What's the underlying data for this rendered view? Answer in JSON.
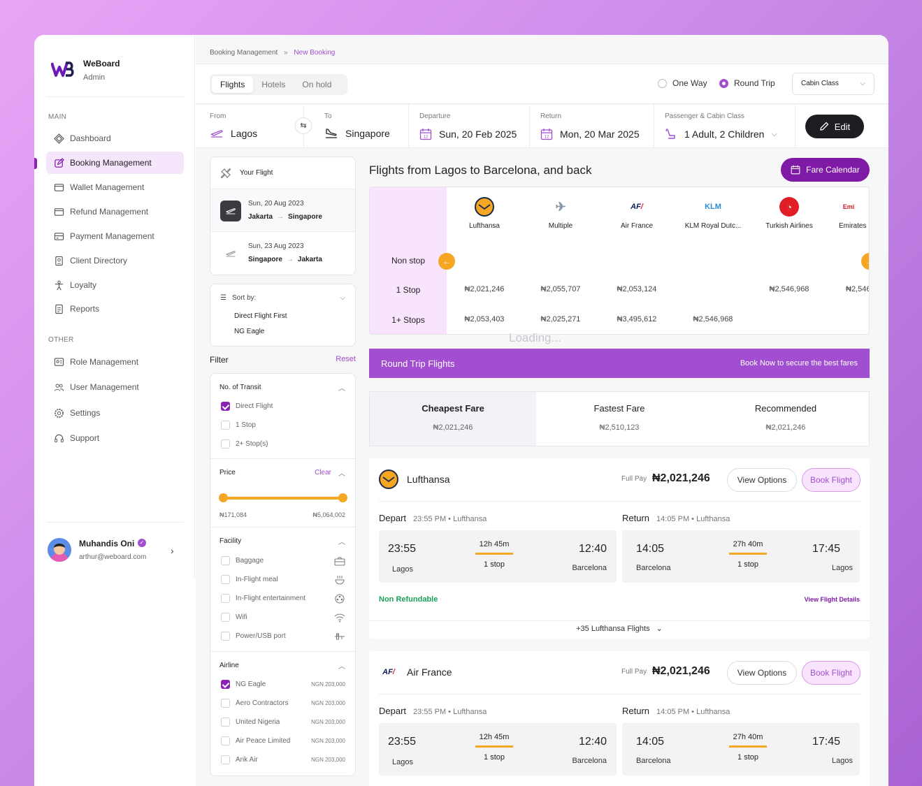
{
  "app": {
    "brand": "WeBoard",
    "role": "Admin"
  },
  "sidebar": {
    "main_label": "MAIN",
    "other_label": "OTHER",
    "items": [
      {
        "label": "Dashboard",
        "icon": "dashboard-icon"
      },
      {
        "label": "Booking Management",
        "icon": "edit-icon",
        "active": true
      },
      {
        "label": "Wallet Management",
        "icon": "wallet-icon"
      },
      {
        "label": "Refund Management",
        "icon": "refund-icon"
      },
      {
        "label": "Payment Management",
        "icon": "card-icon"
      },
      {
        "label": "Client Directory",
        "icon": "directory-icon"
      },
      {
        "label": "Loyalty",
        "icon": "loyalty-icon"
      },
      {
        "label": "Reports",
        "icon": "reports-icon"
      }
    ],
    "other_items": [
      {
        "label": "Role Management",
        "icon": "role-icon"
      },
      {
        "label": "User Management",
        "icon": "users-icon"
      },
      {
        "label": "Settings",
        "icon": "gear-icon"
      },
      {
        "label": "Support",
        "icon": "headset-icon"
      }
    ],
    "user": {
      "name": "Muhandis Oni",
      "email": "arthur@weboard.com"
    }
  },
  "breadcrumb": {
    "parent": "Booking Management",
    "sep": "»",
    "current": "New Booking"
  },
  "tabs": [
    "Flights",
    "Hotels",
    "On hold"
  ],
  "trip_type": {
    "one_way": "One Way",
    "round_trip": "Round Trip",
    "selected": "round_trip"
  },
  "cabin": {
    "label": "Cabin Class"
  },
  "search": {
    "from_label": "From",
    "from": "Lagos",
    "to_label": "To",
    "to": "Singapore",
    "departure_label": "Departure",
    "departure": "Sun, 20  Feb 2025",
    "return_label": "Return",
    "return": "Mon, 20  Mar 2025",
    "pax_label": "Passenger & Cabin Class",
    "pax": "1 Adult, 2 Children",
    "edit": "Edit"
  },
  "your_flight": {
    "title": "Your Flight",
    "legs": [
      {
        "date": "Sun, 20 Aug 2023",
        "from": "Jakarta",
        "to": "Singapore"
      },
      {
        "date": "Sun, 23 Aug 2023",
        "from": "Singapore",
        "to": "Jakarta"
      }
    ]
  },
  "sort": {
    "label": "Sort by:",
    "options": [
      "Direct Flight First",
      "NG Eagle"
    ]
  },
  "filter": {
    "title": "Filter",
    "reset": "Reset",
    "transit": {
      "title": "No. of Transit",
      "options": [
        {
          "label": "Direct Flight",
          "checked": true
        },
        {
          "label": "1 Stop",
          "checked": false
        },
        {
          "label": "2+ Stop(s)",
          "checked": false
        }
      ]
    },
    "price": {
      "title": "Price",
      "clear": "Clear",
      "min": "₦171,084",
      "max": "₦5,064,002",
      "range_fraction": [
        0,
        1
      ]
    },
    "facility": {
      "title": "Facility",
      "options": [
        {
          "label": "Baggage",
          "icon": "baggage-icon"
        },
        {
          "label": "In-Flight meal",
          "icon": "meal-icon"
        },
        {
          "label": "In-Flight entertainment",
          "icon": "entertainment-icon"
        },
        {
          "label": "Wifi",
          "icon": "wifi-icon"
        },
        {
          "label": "Power/USB port",
          "icon": "usb-icon"
        }
      ]
    },
    "airline": {
      "title": "Airline",
      "options": [
        {
          "label": "NG Eagle",
          "price": "NGN 203,000",
          "checked": true
        },
        {
          "label": "Aero Contractors",
          "price": "NGN 203,000",
          "checked": false
        },
        {
          "label": "United Nigeria",
          "price": "NGN 203,000",
          "checked": false
        },
        {
          "label": "Air Peace Limited",
          "price": "NGN 203,000",
          "checked": false
        },
        {
          "label": "Arik Air",
          "price": "NGN 203,000",
          "checked": false
        }
      ]
    }
  },
  "results": {
    "title": "Flights from Lagos to Barcelona, and back",
    "fare_calendar": "Fare Calendar",
    "loading": "Loading...",
    "matrix": {
      "rows": [
        "Non stop",
        "1 Stop",
        "1+ Stops"
      ],
      "airlines": [
        {
          "name": "Lufthansa",
          "prices": [
            "",
            "₦2,021,246",
            "₦2,053,403"
          ]
        },
        {
          "name": "Multiple",
          "prices": [
            "",
            "₦2,055,707",
            "₦2,025,271"
          ]
        },
        {
          "name": "Air France",
          "prices": [
            "",
            "₦2,053,124",
            "₦3,495,612"
          ]
        },
        {
          "name": "KLM Royal Dutc...",
          "prices": [
            "",
            "",
            "₦2,546,968"
          ]
        },
        {
          "name": "Turkish Airlines",
          "prices": [
            "",
            "₦2,546,968",
            ""
          ]
        },
        {
          "name": "Emirates",
          "prices": [
            "",
            "₦2,546",
            ""
          ]
        }
      ]
    },
    "banner": {
      "title": "Round Trip Flights",
      "subtitle": "Book Now to secure the best fares"
    },
    "fare_tabs": [
      {
        "label": "Cheapest Fare",
        "price": "₦2,021,246"
      },
      {
        "label": "Fastest Fare",
        "price": "₦2,510,123"
      },
      {
        "label": "Recommended",
        "price": "₦2,021,246"
      }
    ],
    "flights": [
      {
        "airline": "Lufthansa",
        "pay_label": "Full Pay",
        "price": "₦2,021,246",
        "view": "View Options",
        "book": "Book Flight",
        "depart_label": "Depart",
        "depart_info": "23:55 PM • Lufthansa",
        "return_label": "Return",
        "return_info": "14:05 PM • Lufthansa",
        "out": {
          "dep": "23:55",
          "from": "Lagos",
          "dur": "12h 45m",
          "stops": "1 stop",
          "arr": "12:40",
          "to": "Barcelona"
        },
        "back": {
          "dep": "14:05",
          "from": "Barcelona",
          "dur": "27h 40m",
          "stops": "1 stop",
          "arr": "17:45",
          "to": "Lagos"
        },
        "refund": "Non Refundable",
        "details": "View Flight Details",
        "more": "+35 Lufthansa Flights"
      },
      {
        "airline": "Air France",
        "pay_label": "Full Pay",
        "price": "₦2,021,246",
        "view": "View Options",
        "book": "Book Flight",
        "depart_label": "Depart",
        "depart_info": "23:55 PM • Lufthansa",
        "return_label": "Return",
        "return_info": "14:05 PM • Lufthansa",
        "out": {
          "dep": "23:55",
          "from": "Lagos",
          "dur": "12h 45m",
          "stops": "1 stop",
          "arr": "12:40",
          "to": "Barcelona"
        },
        "back": {
          "dep": "14:05",
          "from": "Barcelona",
          "dur": "27h 40m",
          "stops": "1 stop",
          "arr": "17:45",
          "to": "Lagos"
        }
      }
    ]
  },
  "colors": {
    "accent": "#a24ed0",
    "accent_dark": "#7e1aa5",
    "orange": "#f5a623",
    "green": "#1aa058"
  }
}
